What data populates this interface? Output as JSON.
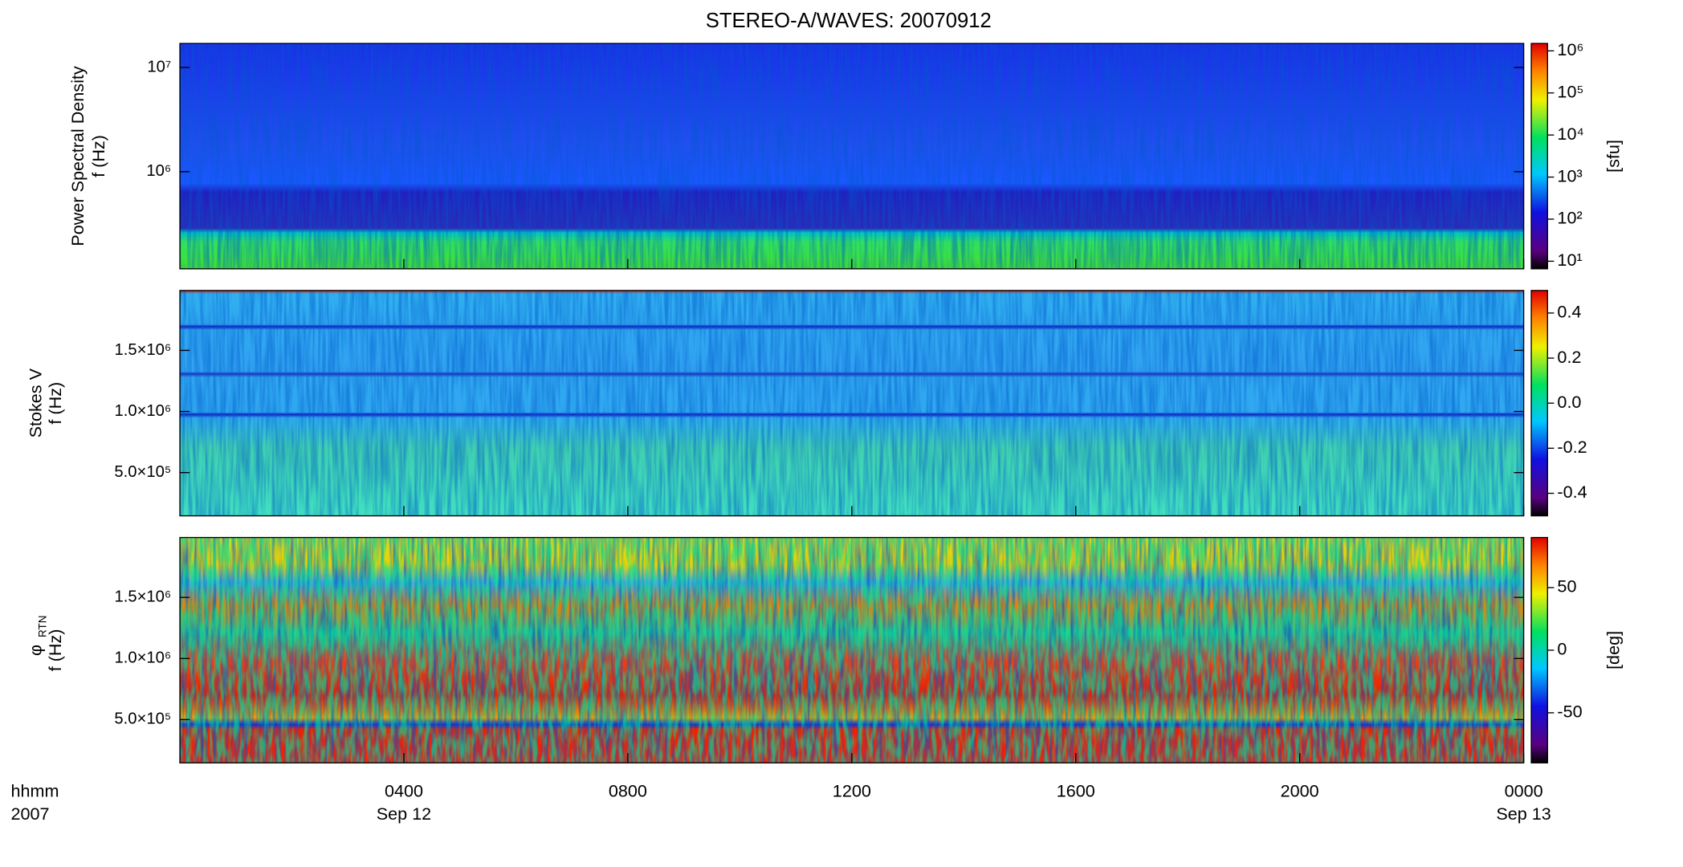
{
  "chart_data": [
    {
      "type": "spectrogram",
      "title": "STEREO-A/WAVES: 20070912",
      "ylabel": [
        "Power Spectral Density",
        "f (Hz)"
      ],
      "ylog": true,
      "ylim": [
        117000,
        17000000
      ],
      "yticks": [
        {
          "value": 1000000,
          "label": "10⁶"
        },
        {
          "value": 10000000,
          "label": "10⁷"
        }
      ],
      "colorbar": {
        "log": true,
        "clim": [
          6.6,
          1500000
        ],
        "label": "[sfu]",
        "ticks": [
          {
            "value": 10,
            "label": "10¹"
          },
          {
            "value": 100,
            "label": "10²"
          },
          {
            "value": 1000,
            "label": "10³"
          },
          {
            "value": 10000,
            "label": "10⁴"
          },
          {
            "value": 100000,
            "label": "10⁵"
          },
          {
            "value": 1000000,
            "label": "10⁶"
          }
        ]
      }
    },
    {
      "type": "spectrogram",
      "ylabel": [
        "Stokes V",
        "f (Hz)"
      ],
      "ylog": false,
      "ylim": [
        146000,
        1990000
      ],
      "yticks": [
        {
          "value": 500000,
          "label": "5.0×10⁵"
        },
        {
          "value": 1000000,
          "label": "1.0×10⁶"
        },
        {
          "value": 1500000,
          "label": "1.5×10⁶"
        }
      ],
      "colorbar": {
        "log": false,
        "clim": [
          -0.5,
          0.5
        ],
        "ticks": [
          -0.4,
          -0.2,
          {
            "value": 0,
            "label": "0.0"
          },
          0.2,
          0.4
        ]
      }
    },
    {
      "type": "spectrogram",
      "ylabel": [
        "φ",
        "f (Hz)"
      ],
      "ylabel_sub": "RTN",
      "ylog": false,
      "ylim": [
        146000,
        1990000
      ],
      "yticks": [
        {
          "value": 500000,
          "label": "5.0×10⁵"
        },
        {
          "value": 1000000,
          "label": "1.0×10⁶"
        },
        {
          "value": 1500000,
          "label": "1.5×10⁶"
        }
      ],
      "colorbar": {
        "log": false,
        "clim": [
          -90,
          90
        ],
        "label": "[deg]",
        "ticks": [
          -50,
          0,
          50
        ]
      },
      "xlim": [
        0,
        24
      ],
      "xticks": [
        {
          "value": 4,
          "label": "0400"
        },
        {
          "value": 8,
          "label": "0800"
        },
        {
          "value": 12,
          "label": "1200"
        },
        {
          "value": 16,
          "label": "1600"
        },
        {
          "value": 20,
          "label": "2000"
        },
        {
          "value": 24,
          "label": "0000"
        }
      ],
      "xlabel": [
        "hhmm",
        "2007"
      ],
      "date_labels": [
        {
          "value": 4,
          "label": "Sep 12"
        },
        {
          "value": 24,
          "label": "Sep 13"
        }
      ]
    }
  ]
}
